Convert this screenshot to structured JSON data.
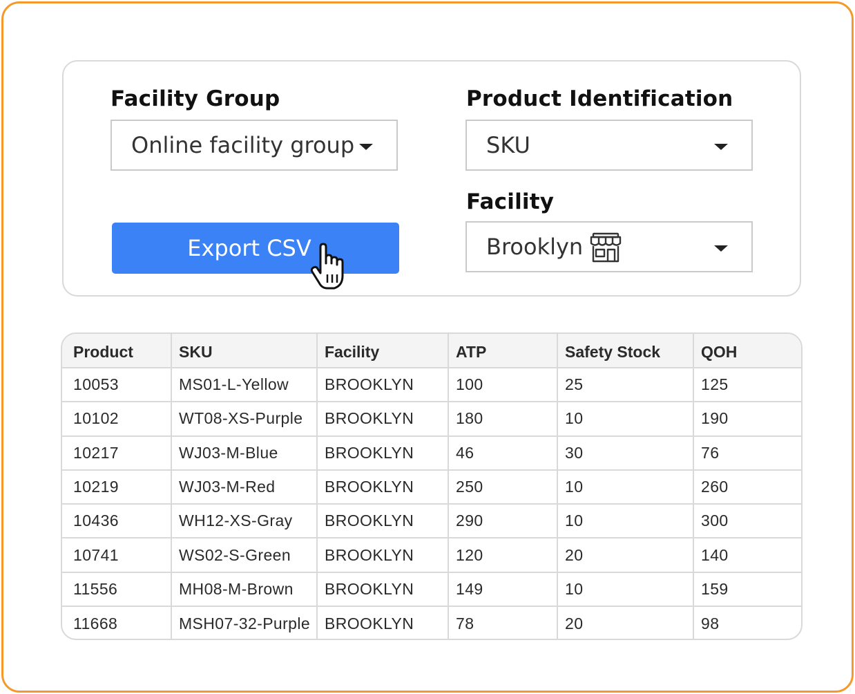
{
  "filters": {
    "facility_group": {
      "label": "Facility Group",
      "value": "Online facility group"
    },
    "product_identification": {
      "label": "Product Identification",
      "value": "SKU"
    },
    "facility": {
      "label": "Facility",
      "value": "Brooklyn"
    },
    "export_label": "Export CSV"
  },
  "table": {
    "headers": [
      "Product",
      "SKU",
      "Facility",
      "ATP",
      "Safety Stock",
      "QOH"
    ],
    "rows": [
      [
        "10053",
        "MS01-L-Yellow",
        "BROOKLYN",
        "100",
        "25",
        "125"
      ],
      [
        "10102",
        "WT08-XS-Purple",
        "BROOKLYN",
        "180",
        "10",
        "190"
      ],
      [
        "10217",
        "WJ03-M-Blue",
        "BROOKLYN",
        "46",
        "30",
        "76"
      ],
      [
        "10219",
        "WJ03-M-Red",
        "BROOKLYN",
        "250",
        "10",
        "260"
      ],
      [
        "10436",
        "WH12-XS-Gray",
        "BROOKLYN",
        "290",
        "10",
        "300"
      ],
      [
        "10741",
        "WS02-S-Green",
        "BROOKLYN",
        "120",
        "20",
        "140"
      ],
      [
        "11556",
        "MH08-M-Brown",
        "BROOKLYN",
        "149",
        "10",
        "159"
      ],
      [
        "11668",
        "MSH07-32-Purple",
        "BROOKLYN",
        "78",
        "20",
        "98"
      ]
    ]
  },
  "icons": {
    "facility_icon": "store-icon",
    "dropdown_icon": "chevron-down-icon",
    "pointer_icon": "hand-pointer-icon"
  },
  "colors": {
    "frame_border": "#f39a2a",
    "accent": "#3b82f6"
  }
}
